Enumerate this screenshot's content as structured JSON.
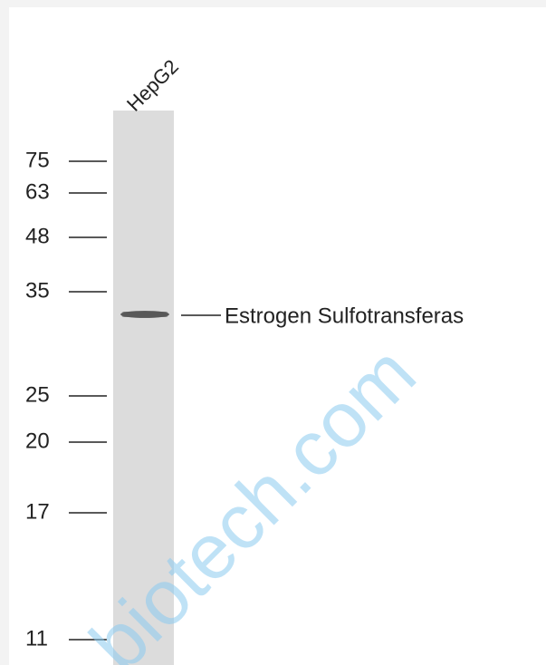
{
  "lane_label": "HepG2",
  "markers": [
    "75",
    "63",
    "48",
    "35",
    "25",
    "20",
    "17",
    "11"
  ],
  "band_label": "Estrogen Sulfotransferas",
  "watermark": "biotech.com"
}
